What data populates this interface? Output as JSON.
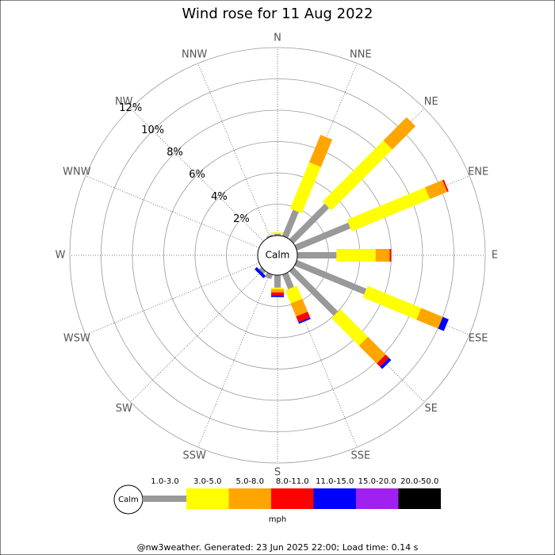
{
  "chart_data": {
    "type": "wind-rose",
    "title": "Wind rose for 11 Aug 2022",
    "categories": [
      "N",
      "NNE",
      "NE",
      "ENE",
      "E",
      "ESE",
      "SE",
      "SSE",
      "S",
      "SSW",
      "SW",
      "WSW",
      "W",
      "WNW",
      "NW",
      "NNW"
    ],
    "series": [
      {
        "name": "1.0-3.0",
        "color": "#999999",
        "values": [
          0.1,
          1.8,
          3.2,
          3.7,
          2.5,
          4.8,
          4.0,
          1.0,
          0.8,
          0.3,
          0.2,
          0,
          0,
          0,
          0,
          0.1
        ]
      },
      {
        "name": "3.0-5.0",
        "color": "#ffff00",
        "values": [
          0.1,
          3.2,
          5.5,
          5.4,
          2.5,
          3.7,
          2.5,
          0.9,
          0.1,
          0,
          0,
          0,
          0,
          0,
          0,
          0
        ]
      },
      {
        "name": "5.0-8.0",
        "color": "#ffa500",
        "values": [
          0,
          1.9,
          2.1,
          1.2,
          0.9,
          1.5,
          1.6,
          0.9,
          0.2,
          0,
          0,
          0,
          0,
          0,
          0,
          0
        ]
      },
      {
        "name": "8.0-11.0",
        "color": "#ff0000",
        "values": [
          0,
          0,
          0,
          0.1,
          0.1,
          0,
          0.3,
          0.4,
          0.2,
          0,
          0,
          0,
          0,
          0,
          0,
          0
        ]
      },
      {
        "name": "11.0-15.0",
        "color": "#0000ff",
        "values": [
          0,
          0,
          0,
          0,
          0,
          0.4,
          0.2,
          0.1,
          0.1,
          0,
          0.2,
          0,
          0,
          0,
          0,
          0
        ]
      },
      {
        "name": "15.0-20.0",
        "color": "#a020f0",
        "values": [
          0,
          0,
          0,
          0,
          0,
          0,
          0,
          0,
          0,
          0,
          0,
          0,
          0,
          0,
          0,
          0
        ]
      },
      {
        "name": "20.0-50.0",
        "color": "#000000",
        "values": [
          0,
          0,
          0,
          0,
          0,
          0,
          0,
          0,
          0,
          0,
          0,
          0,
          0,
          0,
          0,
          0
        ]
      }
    ],
    "rlim": [
      0,
      12
    ],
    "rticks": [
      {
        "value": 2,
        "label": "2%"
      },
      {
        "value": 4,
        "label": "4%"
      },
      {
        "value": 6,
        "label": "6%"
      },
      {
        "value": 8,
        "label": "8%"
      },
      {
        "value": 10,
        "label": "10%"
      },
      {
        "value": 12,
        "label": "12%"
      }
    ],
    "calm_label": "Calm",
    "legend_unit": "mph",
    "footer": "@nw3weather. Generated: 23 Jun 2025 22:00; Load time: 0.14 s"
  }
}
